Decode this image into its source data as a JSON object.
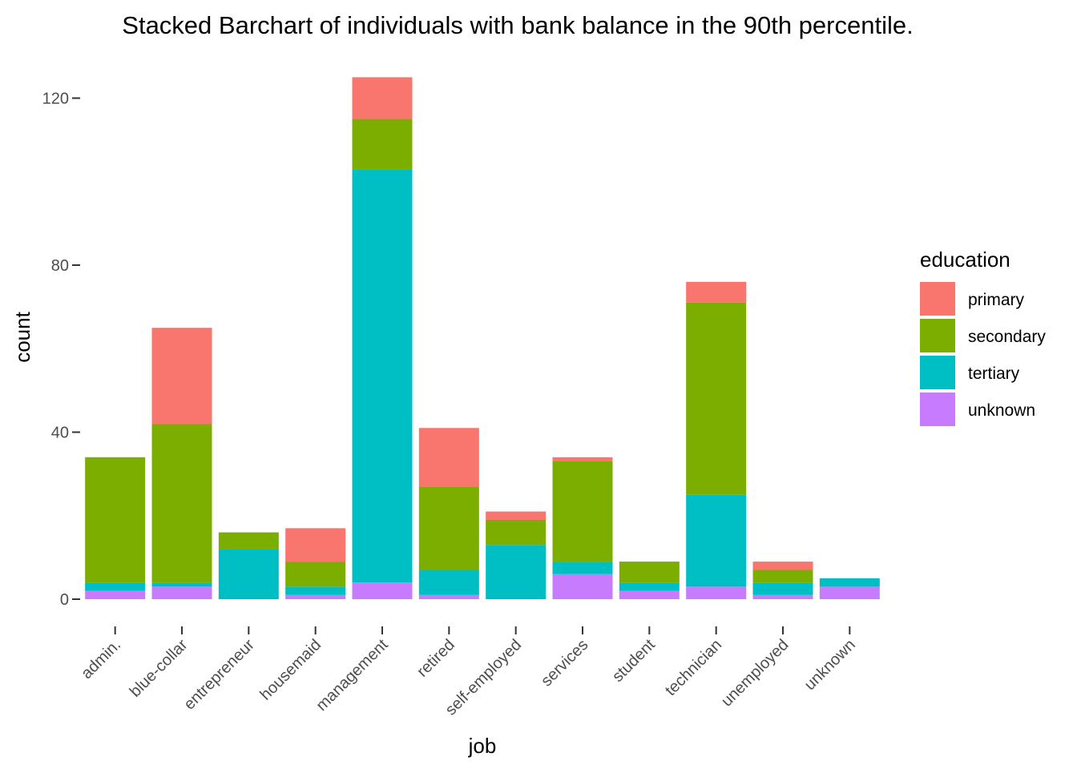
{
  "chart_data": {
    "type": "bar",
    "stacked": true,
    "title": "Stacked Barchart of individuals with bank balance in the 90th percentile.",
    "xlabel": "job",
    "ylabel": "count",
    "ylim": [
      0,
      125
    ],
    "yticks": [
      0,
      40,
      80,
      120
    ],
    "grid": false,
    "legend_position": "right",
    "legend_title": "education",
    "categories": [
      "admin.",
      "blue-collar",
      "entrepreneur",
      "housemaid",
      "management",
      "retired",
      "self-employed",
      "services",
      "student",
      "technician",
      "unemployed",
      "unknown"
    ],
    "series": [
      {
        "name": "unknown",
        "color": "#C77CFF",
        "values": [
          2,
          3,
          0,
          1,
          4,
          1,
          0,
          6,
          2,
          3,
          1,
          3
        ]
      },
      {
        "name": "tertiary",
        "color": "#00BFC4",
        "values": [
          2,
          1,
          12,
          2,
          99,
          6,
          13,
          3,
          2,
          22,
          3,
          2
        ]
      },
      {
        "name": "secondary",
        "color": "#7CAE00",
        "values": [
          30,
          38,
          4,
          6,
          12,
          20,
          6,
          24,
          5,
          46,
          3,
          0
        ]
      },
      {
        "name": "primary",
        "color": "#F8766D",
        "values": [
          0,
          23,
          0,
          8,
          10,
          14,
          2,
          1,
          0,
          5,
          2,
          0
        ]
      }
    ]
  }
}
